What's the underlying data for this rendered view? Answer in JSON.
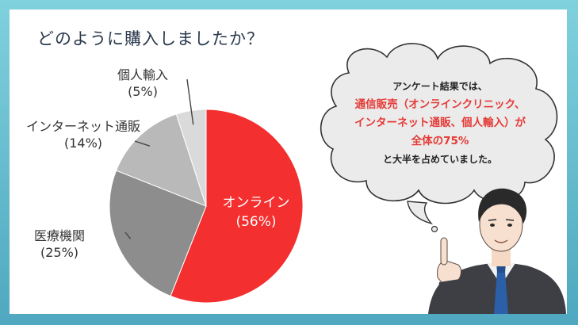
{
  "title": "どのように購入しましたか？",
  "chart_data": {
    "type": "pie",
    "title": "どのように購入しましたか？",
    "categories": [
      "オンライン",
      "医療機関",
      "インターネット通販",
      "個人輸入"
    ],
    "values": [
      56,
      25,
      14,
      5
    ],
    "value_labels": [
      "(56%)",
      "(25%)",
      "(14%)",
      "(5%)"
    ],
    "colors": [
      "#f32f2f",
      "#8d8d8d",
      "#b9b9b9",
      "#dadada"
    ]
  },
  "callout": {
    "line1": "アンケート結果では、",
    "line2": "通信販売（オンラインクリニック、",
    "line3": "インターネット通販、個人輸入）が",
    "line4": "全体の75%",
    "line5": "と大半を占めていました。"
  }
}
